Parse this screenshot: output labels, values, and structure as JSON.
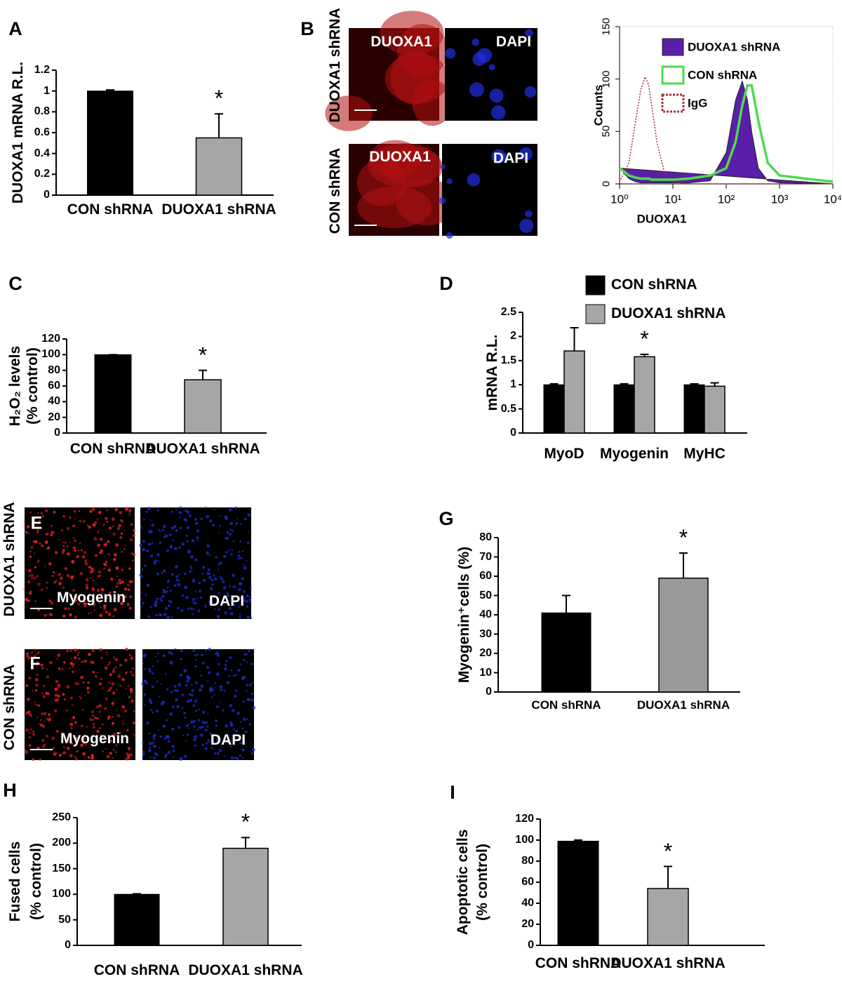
{
  "chart_data": [
    {
      "type": "bar",
      "panel": "A",
      "ylabel": [
        "DUOXA1 mRNA R.L."
      ],
      "categories": [
        "CON shRNA",
        "DUOXA1 shRNA"
      ],
      "values": [
        1,
        0.55
      ],
      "errors": [
        0.01,
        0.23
      ],
      "colors": [
        "#000000",
        "#a6a6a6"
      ],
      "ylim": [
        0,
        1.2
      ],
      "yticks": [
        0,
        0.2,
        0.4,
        0.6,
        0.8,
        1,
        1.2
      ],
      "annotations": [
        {
          "text": "*",
          "index": 1
        }
      ]
    },
    {
      "type": "line",
      "panel": "B",
      "xlabel": "DUOXA1",
      "ylabel": [
        "Counts"
      ],
      "log_x": true,
      "x": [
        1,
        1.5,
        2,
        2.5,
        3,
        3.5,
        4,
        5,
        7,
        10,
        20,
        50,
        100,
        150,
        200,
        250,
        300,
        400,
        600,
        1000,
        10000
      ],
      "xlim": [
        1,
        10000
      ],
      "xticks": [
        {
          "value": 1,
          "label": "10⁰"
        },
        {
          "value": 10,
          "label": "10¹"
        },
        {
          "value": 100,
          "label": "10²"
        },
        {
          "value": 1000,
          "label": "10³"
        },
        {
          "value": 10000,
          "label": "10⁴"
        }
      ],
      "ylim": [
        0,
        150
      ],
      "yticks": [
        0,
        50,
        100,
        150
      ],
      "series": [
        {
          "name": "DUOXA1 shRNA",
          "color": "#5a1ea8",
          "fill": true,
          "values": [
            15,
            5,
            2,
            1,
            1,
            1,
            1,
            1,
            1,
            1,
            1,
            3,
            30,
            80,
            98,
            80,
            50,
            15,
            3,
            1,
            0
          ]
        },
        {
          "name": "CON shRNA",
          "color": "#4ddb4d",
          "values": [
            15,
            8,
            6,
            5,
            5,
            5,
            4,
            4,
            4,
            4,
            5,
            8,
            15,
            40,
            75,
            94,
            94,
            60,
            20,
            8,
            2
          ]
        },
        {
          "name": "IgG",
          "color": "#a0303c",
          "dashed": true,
          "values": [
            2,
            20,
            60,
            90,
            102,
            95,
            75,
            40,
            10,
            2,
            0,
            0,
            0,
            0,
            0,
            0,
            0,
            0,
            0,
            0,
            0
          ]
        }
      ]
    },
    {
      "type": "bar",
      "panel": "C",
      "ylabel": [
        "H₂O₂ levels",
        "(% control)"
      ],
      "categories": [
        "CON shRNA",
        "DUOXA1 shRNA"
      ],
      "values": [
        100,
        68
      ],
      "errors": [
        0,
        12
      ],
      "colors": [
        "#000000",
        "#a6a6a6"
      ],
      "ylim": [
        0,
        120
      ],
      "yticks": [
        0,
        20,
        40,
        60,
        80,
        100,
        120
      ],
      "annotations": [
        {
          "text": "*",
          "index": 1
        }
      ]
    },
    {
      "type": "bar",
      "panel": "D",
      "ylabel": [
        "mRNA R.L."
      ],
      "categories": [
        "MyoD",
        "Myogenin",
        "MyHC"
      ],
      "series": [
        {
          "name": "CON shRNA",
          "color": "#000000",
          "values": [
            1,
            1,
            1
          ],
          "errors": [
            0.02,
            0.02,
            0.02
          ]
        },
        {
          "name": "DUOXA1 shRNA",
          "color": "#a6a6a6",
          "values": [
            1.7,
            1.58,
            0.97
          ],
          "errors": [
            0.48,
            0.05,
            0.07
          ]
        }
      ],
      "ylim": [
        0,
        2.5
      ],
      "yticks": [
        0,
        0.5,
        1,
        1.5,
        2,
        2.5
      ],
      "annotations": [
        {
          "text": "*",
          "series": 1,
          "index": 1
        }
      ]
    },
    {
      "type": "bar",
      "panel": "G",
      "ylabel": [
        "Myogenin⁺cells (%)"
      ],
      "categories": [
        "CON shRNA",
        "DUOXA1 shRNA"
      ],
      "values": [
        41,
        59
      ],
      "errors": [
        9,
        13
      ],
      "colors": [
        "#000000",
        "#999999"
      ],
      "ylim": [
        0,
        80
      ],
      "yticks": [
        0,
        10,
        20,
        30,
        40,
        50,
        60,
        70,
        80
      ],
      "annotations": [
        {
          "text": "*",
          "index": 1
        }
      ]
    },
    {
      "type": "bar",
      "panel": "H",
      "ylabel": [
        "Fused cells",
        "(% control)"
      ],
      "categories": [
        "CON shRNA",
        "DUOXA1 shRNA"
      ],
      "values": [
        100,
        190
      ],
      "errors": [
        1,
        21
      ],
      "colors": [
        "#000000",
        "#a6a6a6"
      ],
      "ylim": [
        0,
        250
      ],
      "yticks": [
        0,
        50,
        100,
        150,
        200,
        250
      ],
      "annotations": [
        {
          "text": "*",
          "index": 1
        }
      ]
    },
    {
      "type": "bar",
      "panel": "I",
      "ylabel": [
        "Apoptotic cells",
        "(% control)"
      ],
      "categories": [
        "CON shRNA",
        "DUOXA1 shRNA"
      ],
      "values": [
        99,
        54
      ],
      "errors": [
        1,
        21
      ],
      "colors": [
        "#000000",
        "#a6a6a6"
      ],
      "ylim": [
        0,
        120
      ],
      "yticks": [
        0,
        20,
        40,
        60,
        80,
        100,
        120
      ],
      "annotations": [
        {
          "text": "*",
          "index": 1
        }
      ]
    }
  ],
  "image_panels": [
    {
      "panel": "B",
      "rows": [
        "DUOXA1 shRNA",
        "CON shRNA"
      ],
      "channels": [
        "DUOXA1",
        "DAPI"
      ]
    },
    {
      "panel": "E",
      "row": "DUOXA1 shRNA",
      "channels": [
        "Myogenin",
        "DAPI"
      ]
    },
    {
      "panel": "F",
      "row": "CON shRNA",
      "channels": [
        "Myogenin",
        "DAPI"
      ]
    }
  ]
}
